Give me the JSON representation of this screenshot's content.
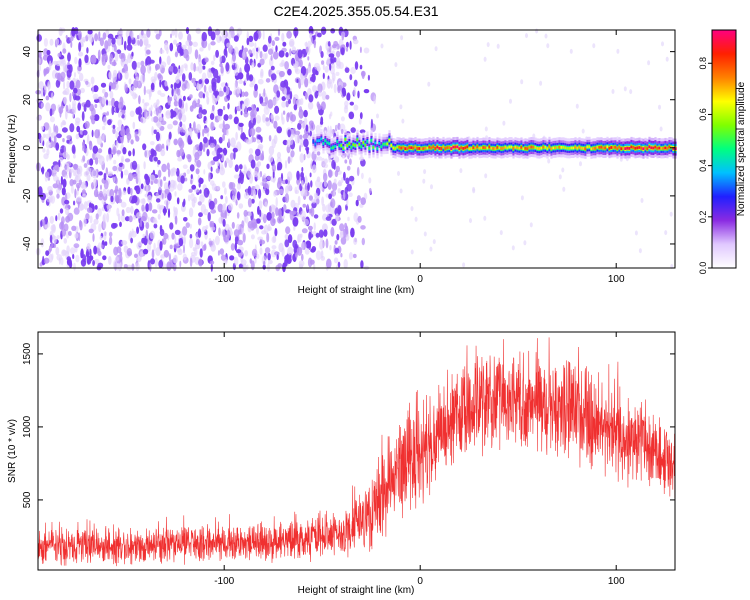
{
  "title": "C2E4.2025.355.05.54.E31",
  "chart_data": [
    {
      "type": "heatmap",
      "xlabel": "Height of straight line (km)",
      "ylabel": "Frequency (Hz)",
      "xlim": [
        -195,
        130
      ],
      "ylim": [
        -50,
        49
      ],
      "x_ticks": [
        -100,
        0,
        100
      ],
      "x_tick_labels": [
        "-100",
        "0",
        "100"
      ],
      "y_ticks": [
        -40,
        -20,
        0,
        20,
        40
      ],
      "y_tick_labels": [
        "-40",
        "-20",
        "0",
        "20",
        "40"
      ],
      "colorbar": {
        "label": "Normalized spectral amplitude",
        "range": [
          0,
          0.93
        ],
        "ticks": [
          0.0,
          0.2,
          0.4,
          0.6,
          0.8
        ],
        "tick_labels": [
          "0.0",
          "0.2",
          "0.4",
          "0.6",
          "0.8"
        ],
        "colormap": [
          "#ffffff",
          "#e0c8ff",
          "#8a2be2",
          "#2020ff",
          "#00c0ff",
          "#00ff80",
          "#80ff00",
          "#ffff00",
          "#ff8000",
          "#ff2000",
          "#ff0080"
        ]
      },
      "noise_region": {
        "x_start": -195,
        "x_end": -22,
        "dominant_color": "#7a3df0"
      },
      "signal_ridge": {
        "frequency_hz": 0,
        "x": [
          -55,
          -45,
          -38,
          -30,
          -25,
          -20,
          -15,
          -5,
          5,
          15,
          30,
          50,
          70,
          85,
          95,
          100,
          110,
          130
        ],
        "amplitude": [
          0.35,
          0.5,
          0.6,
          0.55,
          0.5,
          0.45,
          0.7,
          0.85,
          0.8,
          0.9,
          0.8,
          0.75,
          0.7,
          0.72,
          0.8,
          0.85,
          0.9,
          0.85
        ]
      },
      "grid": false
    },
    {
      "type": "line",
      "xlabel": "Height of straight line (km)",
      "ylabel": "SNR (10 * v/v)",
      "xlim": [
        -195,
        130
      ],
      "ylim": [
        20,
        1650
      ],
      "x_ticks": [
        -100,
        0,
        100
      ],
      "x_tick_labels": [
        "-100",
        "0",
        "100"
      ],
      "y_ticks": [
        500,
        1000,
        1500
      ],
      "y_tick_labels": [
        "500",
        "1000",
        "1500"
      ],
      "color": "#f03030",
      "grid": false,
      "envelope": {
        "x": [
          -195,
          -150,
          -100,
          -60,
          -40,
          -30,
          -20,
          -10,
          0,
          10,
          20,
          35,
          50,
          65,
          80,
          100,
          115,
          130
        ],
        "lower": [
          40,
          40,
          50,
          60,
          70,
          90,
          180,
          250,
          350,
          600,
          750,
          800,
          780,
          750,
          700,
          600,
          520,
          450
        ],
        "upper": [
          320,
          340,
          360,
          380,
          450,
          600,
          900,
          1150,
          1300,
          1350,
          1450,
          1600,
          1620,
          1550,
          1500,
          1350,
          1200,
          1050
        ]
      }
    }
  ]
}
